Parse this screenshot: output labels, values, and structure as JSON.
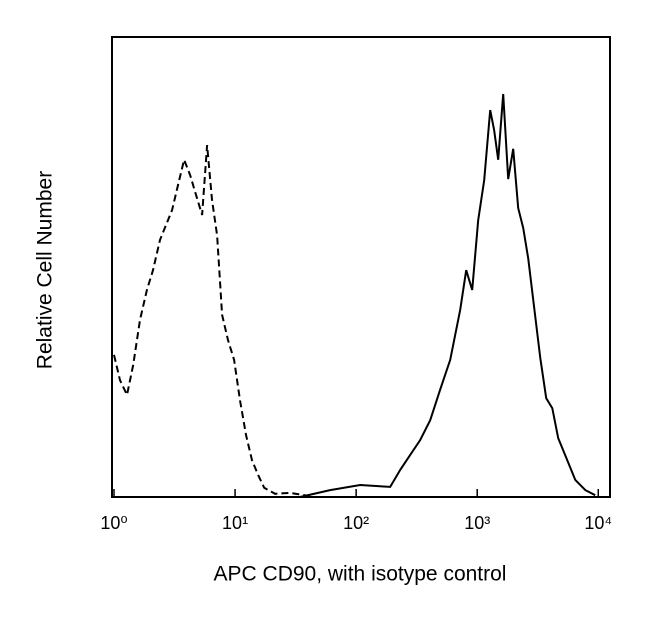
{
  "chart_data": {
    "type": "line",
    "xlabel": "APC CD90, with isotype control",
    "ylabel": "Relative Cell Number",
    "xscale": "log",
    "xlim": [
      1,
      12500
    ],
    "ylim": [
      0,
      100
    ],
    "xticks": [
      {
        "value": 1,
        "label": "10⁰"
      },
      {
        "value": 10,
        "label": "10¹"
      },
      {
        "value": 100,
        "label": "10²"
      },
      {
        "value": 1000,
        "label": "10³"
      },
      {
        "value": 10000,
        "label": "10⁴"
      }
    ],
    "series": [
      {
        "color": "#000000",
        "style": "dashed",
        "x": [
          1,
          1.12,
          1.28,
          1.44,
          1.64,
          1.87,
          2.1,
          2.4,
          2.69,
          3.02,
          3.38,
          3.79,
          4.25,
          4.76,
          5.34,
          5.87,
          6.45,
          7.1,
          7.81,
          8.75,
          9.82,
          11,
          12.3,
          13.8,
          15.5,
          17.4,
          21.4,
          28.5,
          41.7
        ],
        "values": [
          30.9,
          25.4,
          22.2,
          28.7,
          38.5,
          45,
          49.3,
          55.9,
          59.1,
          62.4,
          67.8,
          73.3,
          70,
          65.7,
          61.3,
          76.5,
          64.6,
          56.9,
          39.6,
          34.1,
          29.8,
          20.9,
          13.5,
          8,
          4.8,
          2,
          0.7,
          0.9,
          0.2
        ]
      },
      {
        "color": "#000000",
        "style": "solid",
        "x": [
          34.4,
          61,
          108,
          191,
          231,
          279,
          338,
          409,
          494,
          598,
          724,
          811,
          910,
          1019,
          1143,
          1280,
          1380,
          1492,
          1641,
          1804,
          1985,
          2182,
          2399,
          2638,
          2958,
          3318,
          3715,
          4169,
          4667,
          5440,
          6457,
          7814,
          9441
        ],
        "values": [
          0,
          1.5,
          2.6,
          2.2,
          5.9,
          9.1,
          12.4,
          16.7,
          23.3,
          29.8,
          40.7,
          49.3,
          45,
          60.2,
          68.9,
          84.1,
          79.8,
          73.3,
          87.6,
          69.1,
          75.7,
          62.8,
          58.5,
          51.9,
          41.1,
          30.2,
          21.5,
          19.3,
          12.8,
          8.5,
          3.7,
          1.5,
          0.4
        ]
      }
    ]
  }
}
